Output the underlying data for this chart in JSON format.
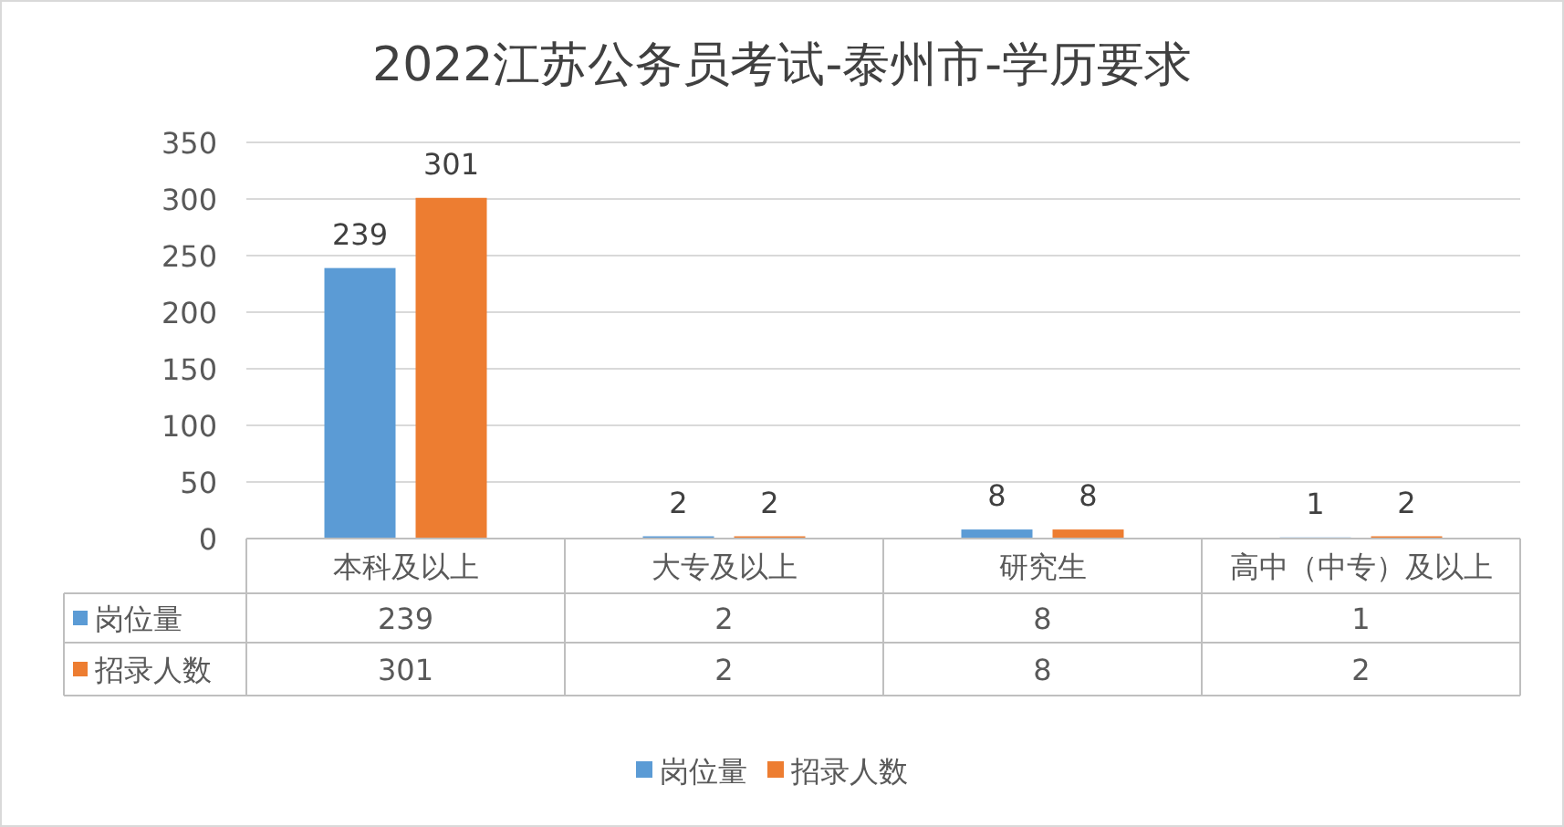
{
  "chart_data": {
    "type": "bar",
    "title": "2022江苏公务员考试-泰州市-学历要求",
    "categories": [
      "本科及以上",
      "大专及以上",
      "研究生",
      "高中（中专）及以上"
    ],
    "series": [
      {
        "name": "岗位量",
        "color": "#5b9bd5",
        "values": [
          239,
          2,
          8,
          1
        ]
      },
      {
        "name": "招录人数",
        "color": "#ed7d31",
        "values": [
          301,
          2,
          8,
          2
        ]
      }
    ],
    "annotations": [
      "239",
      "2",
      "8",
      "1",
      "301",
      "2",
      "8",
      "2"
    ],
    "ylim": [
      0,
      350
    ],
    "yticks": [
      0,
      50,
      100,
      150,
      200,
      250,
      300,
      350
    ],
    "grid": "y",
    "data_labels": true,
    "legend": "bottom"
  }
}
